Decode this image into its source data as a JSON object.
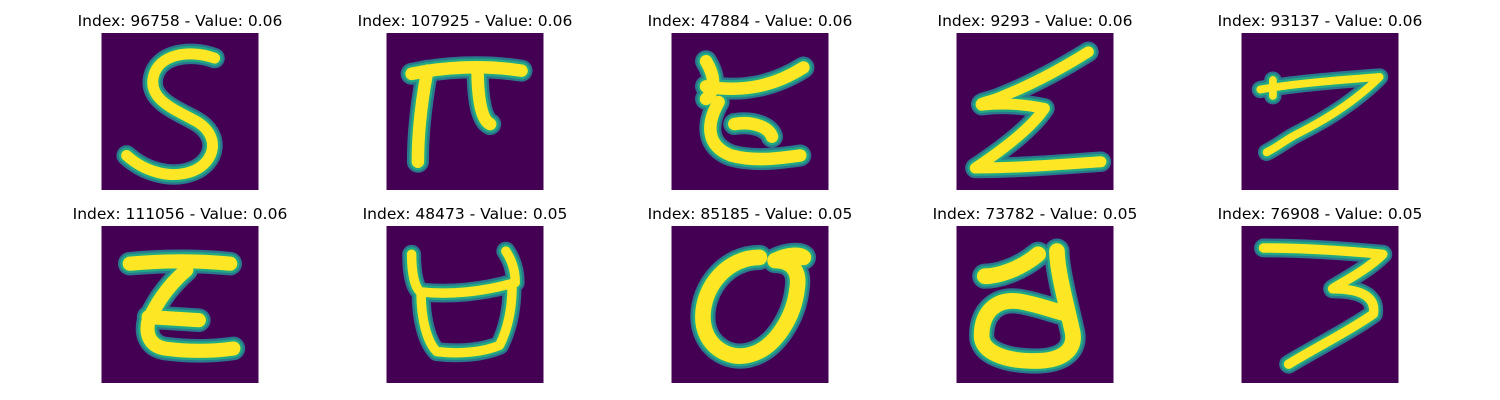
{
  "colors": {
    "background": "#440154",
    "stroke_core": "#fde725",
    "stroke_mid": "#22a884",
    "stroke_edge": "#2a788e"
  },
  "panels": [
    {
      "index": "96758",
      "value": "0.06",
      "title": "Index: 96758 - Value: 0.06",
      "glyph": "S"
    },
    {
      "index": "107925",
      "value": "0.06",
      "title": "Index: 107925 - Value: 0.06",
      "glyph": "π"
    },
    {
      "index": "47884",
      "value": "0.06",
      "title": "Index: 47884 - Value: 0.06",
      "glyph": "ɛ"
    },
    {
      "index": "9293",
      "value": "0.06",
      "title": "Index: 9293 - Value: 0.06",
      "glyph": "Z"
    },
    {
      "index": "93137",
      "value": "0.06",
      "title": "Index: 93137 - Value: 0.06",
      "glyph": "7"
    },
    {
      "index": "111056",
      "value": "0.06",
      "title": "Index: 111056 - Value: 0.06",
      "glyph": "Z"
    },
    {
      "index": "48473",
      "value": "0.05",
      "title": "Index: 48473 - Value: 0.05",
      "glyph": "U"
    },
    {
      "index": "85185",
      "value": "0.05",
      "title": "Index: 85185 - Value: 0.05",
      "glyph": "O"
    },
    {
      "index": "73782",
      "value": "0.05",
      "title": "Index: 73782 - Value: 0.05",
      "glyph": "d"
    },
    {
      "index": "76908",
      "value": "0.05",
      "title": "Index: 76908 - Value: 0.05",
      "glyph": "3"
    }
  ]
}
